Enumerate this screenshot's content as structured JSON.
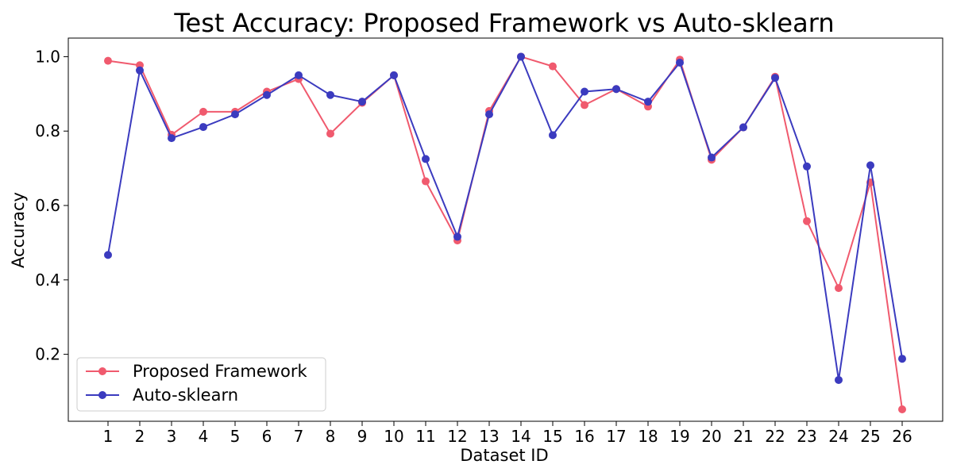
{
  "chart_data": {
    "type": "line",
    "title": "Test Accuracy: Proposed Framework vs Auto-sklearn",
    "xlabel": "Dataset ID",
    "ylabel": "Accuracy",
    "categories": [
      "1",
      "2",
      "3",
      "4",
      "5",
      "6",
      "7",
      "8",
      "9",
      "10",
      "11",
      "12",
      "13",
      "14",
      "15",
      "16",
      "17",
      "18",
      "19",
      "20",
      "21",
      "22",
      "23",
      "24",
      "25",
      "26"
    ],
    "yticks": [
      "0.2",
      "0.4",
      "0.6",
      "0.8",
      "1.0"
    ],
    "ylim": [
      0.02,
      1.05
    ],
    "grid": false,
    "legend_position": "lower-left",
    "series": [
      {
        "name": "Proposed Framework",
        "color": "#f05a6e",
        "values": [
          0.989,
          0.977,
          0.79,
          0.852,
          0.852,
          0.906,
          0.94,
          0.793,
          0.876,
          0.95,
          0.665,
          0.506,
          0.854,
          1.0,
          0.974,
          0.87,
          0.913,
          0.866,
          0.992,
          0.723,
          0.81,
          0.946,
          0.558,
          0.378,
          0.662,
          0.052
        ]
      },
      {
        "name": "Auto-sklearn",
        "color": "#3b3bbf",
        "values": [
          0.467,
          0.963,
          0.781,
          0.811,
          0.845,
          0.897,
          0.95,
          0.897,
          0.879,
          0.95,
          0.725,
          0.516,
          0.845,
          1.0,
          0.789,
          0.906,
          0.913,
          0.879,
          0.984,
          0.729,
          0.81,
          0.943,
          0.705,
          0.131,
          0.708,
          0.188
        ]
      }
    ]
  }
}
